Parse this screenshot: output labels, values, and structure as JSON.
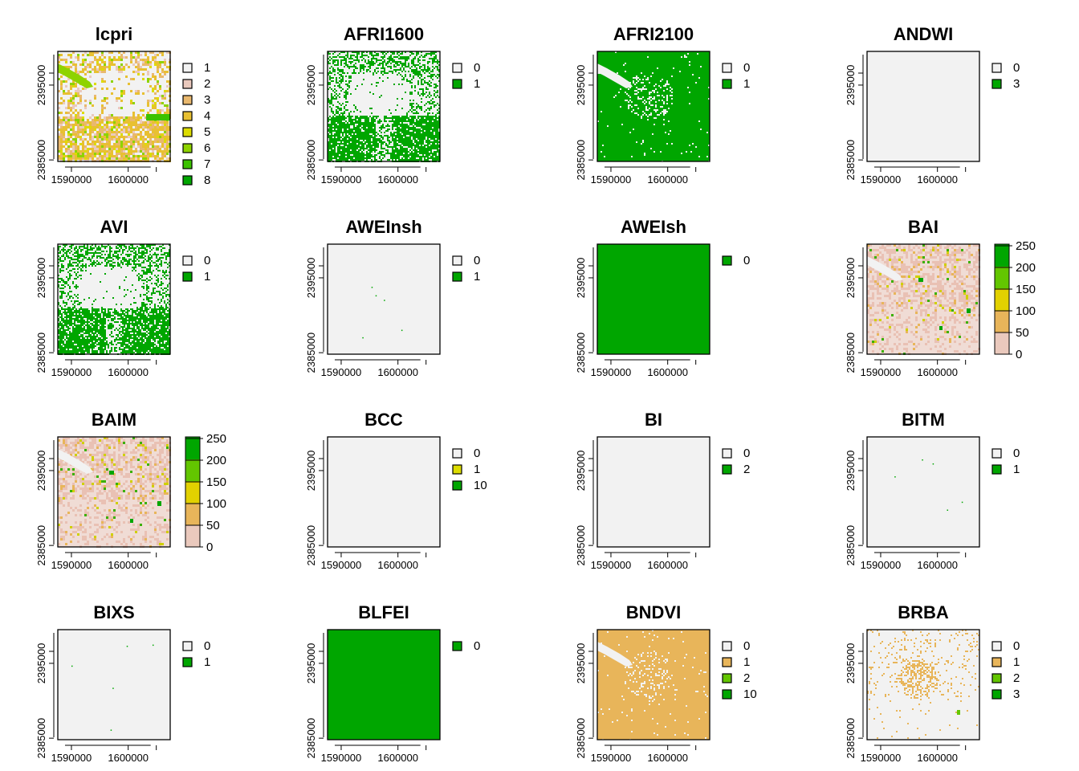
{
  "chart_data": {
    "type": "heatmap",
    "grid": [
      4,
      4
    ],
    "axes": {
      "x_ticks": [
        1590000,
        1600000
      ],
      "x_tick_labels": [
        "1590000",
        "1600000"
      ],
      "y_ticks": [
        2385000,
        2395000
      ],
      "y_tick_labels": [
        "2385000",
        "2395000"
      ],
      "xlim": [
        1587600,
        1607400
      ],
      "ylim": [
        2384800,
        2399500
      ]
    },
    "colors": {
      "background": "#f2f2f2",
      "green": "#00a600",
      "pink": "#eac9bd",
      "tan": "#e8b55a",
      "yellow": "#dcdc00",
      "lime": "#63c600",
      "ramp": [
        "#f2f2f2",
        "#eac9bd",
        "#e8b55a",
        "#e2d100",
        "#63c600",
        "#00a600"
      ]
    },
    "panels": [
      {
        "title": "lcpri",
        "style": "lcpri",
        "legend": {
          "type": "classes",
          "labels": [
            "1",
            "2",
            "3",
            "4",
            "5",
            "6",
            "7",
            "8"
          ],
          "colors": [
            "#f2f2f2",
            "#eac9bd",
            "#e9b86e",
            "#e8c032",
            "#dcdc00",
            "#8ed300",
            "#3bc200",
            "#00a600"
          ]
        }
      },
      {
        "title": "AFRI1600",
        "style": "afri1600",
        "legend": {
          "type": "classes",
          "labels": [
            "0",
            "1"
          ],
          "colors": [
            "#f2f2f2",
            "#00a600"
          ]
        }
      },
      {
        "title": "AFRI2100",
        "style": "afri2100",
        "legend": {
          "type": "classes",
          "labels": [
            "0",
            "1"
          ],
          "colors": [
            "#f2f2f2",
            "#00a600"
          ]
        }
      },
      {
        "title": "ANDWI",
        "style": "blank",
        "legend": {
          "type": "classes",
          "labels": [
            "0",
            "3"
          ],
          "colors": [
            "#f2f2f2",
            "#00a600"
          ]
        }
      },
      {
        "title": "AVI",
        "style": "afri1600",
        "legend": {
          "type": "classes",
          "labels": [
            "0",
            "1"
          ],
          "colors": [
            "#f2f2f2",
            "#00a600"
          ]
        }
      },
      {
        "title": "AWEInsh",
        "style": "specks",
        "legend": {
          "type": "classes",
          "labels": [
            "0",
            "1"
          ],
          "colors": [
            "#f2f2f2",
            "#00a600"
          ]
        }
      },
      {
        "title": "AWEIsh",
        "style": "solid",
        "legend": {
          "type": "classes",
          "labels": [
            "0"
          ],
          "colors": [
            "#00a600"
          ]
        }
      },
      {
        "title": "BAI",
        "style": "bai",
        "legend": {
          "type": "continuous",
          "labels": [
            "250",
            "200",
            "150",
            "100",
            "50",
            "0"
          ],
          "values": [
            250,
            200,
            150,
            100,
            50,
            0
          ]
        }
      },
      {
        "title": "BAIM",
        "style": "bai",
        "legend": {
          "type": "continuous",
          "labels": [
            "250",
            "200",
            "150",
            "100",
            "50",
            "0"
          ],
          "values": [
            250,
            200,
            150,
            100,
            50,
            0
          ]
        }
      },
      {
        "title": "BCC",
        "style": "blank",
        "legend": {
          "type": "classes",
          "labels": [
            "0",
            "1",
            "10"
          ],
          "colors": [
            "#f2f2f2",
            "#dcdc00",
            "#00a600"
          ]
        }
      },
      {
        "title": "BI",
        "style": "blank",
        "legend": {
          "type": "classes",
          "labels": [
            "0",
            "2"
          ],
          "colors": [
            "#f2f2f2",
            "#00a600"
          ]
        }
      },
      {
        "title": "BITM",
        "style": "specks",
        "legend": {
          "type": "classes",
          "labels": [
            "0",
            "1"
          ],
          "colors": [
            "#f2f2f2",
            "#00a600"
          ]
        }
      },
      {
        "title": "BIXS",
        "style": "specks",
        "legend": {
          "type": "classes",
          "labels": [
            "0",
            "1"
          ],
          "colors": [
            "#f2f2f2",
            "#00a600"
          ]
        }
      },
      {
        "title": "BLFEI",
        "style": "solid",
        "legend": {
          "type": "classes",
          "labels": [
            "0"
          ],
          "colors": [
            "#00a600"
          ]
        }
      },
      {
        "title": "BNDVI",
        "style": "bndvi",
        "legend": {
          "type": "classes",
          "labels": [
            "0",
            "1",
            "2",
            "10"
          ],
          "colors": [
            "#f2f2f2",
            "#e8b55a",
            "#63c600",
            "#00a600"
          ]
        }
      },
      {
        "title": "BRBA",
        "style": "brba",
        "legend": {
          "type": "classes",
          "labels": [
            "0",
            "1",
            "2",
            "3"
          ],
          "colors": [
            "#f2f2f2",
            "#e8b55a",
            "#63c600",
            "#00a600"
          ]
        }
      }
    ]
  }
}
